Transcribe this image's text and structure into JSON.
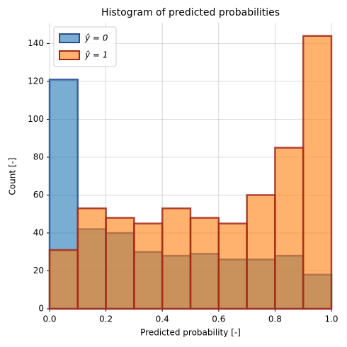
{
  "chart_data": {
    "type": "histogram",
    "title": "Histogram of predicted probabilities",
    "xlabel": "Predicted probability [-]",
    "ylabel": "Count [-]",
    "bins": [
      0,
      0.1,
      0.2,
      0.3,
      0.4,
      0.5,
      0.6,
      0.7,
      0.8,
      0.9,
      1.0
    ],
    "series": [
      {
        "name": "ŷ = 0",
        "color": "#1f77b4",
        "edgecolor": "#2c4d96",
        "values": [
          121,
          42,
          40,
          30,
          28,
          29,
          26,
          26,
          28,
          18
        ]
      },
      {
        "name": "ŷ = 1",
        "color": "#ff7f0e",
        "edgecolor": "#a3281a",
        "values": [
          31,
          53,
          48,
          45,
          53,
          48,
          45,
          60,
          85,
          144
        ]
      }
    ],
    "xlim": [
      0,
      1.0
    ],
    "ylim": [
      0,
      151
    ],
    "xticks": [
      {
        "value": 0,
        "label": "0.0"
      },
      {
        "value": 0.2,
        "label": "0.2"
      },
      {
        "value": 0.4,
        "label": "0.4"
      },
      {
        "value": 0.6,
        "label": "0.6"
      },
      {
        "value": 0.8,
        "label": "0.8"
      },
      {
        "value": 1.0,
        "label": "1.0"
      }
    ],
    "yticks": [
      0,
      20,
      40,
      60,
      80,
      100,
      120,
      140
    ],
    "grid": true,
    "legend": "upper left"
  }
}
